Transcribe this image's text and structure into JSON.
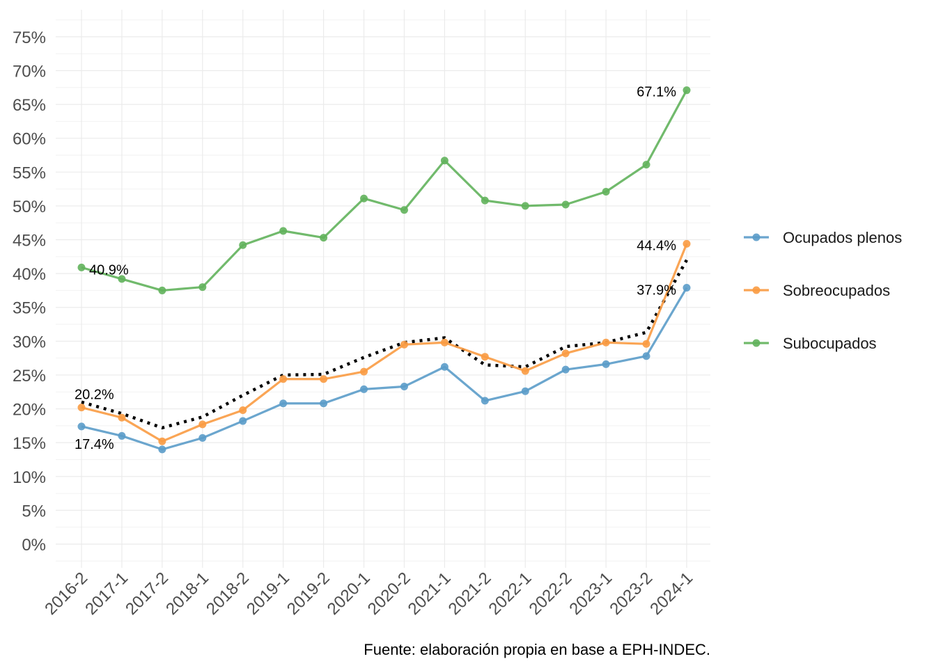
{
  "chart_data": {
    "type": "line",
    "x": [
      "2016-2",
      "2017-1",
      "2017-2",
      "2018-1",
      "2018-2",
      "2019-1",
      "2019-2",
      "2020-1",
      "2020-2",
      "2021-1",
      "2021-2",
      "2022-1",
      "2022-2",
      "2023-1",
      "2023-2",
      "2024-1"
    ],
    "series": [
      {
        "name": "Ocupados plenos",
        "color": "#5b9cc9",
        "values": [
          17.4,
          16.0,
          14.0,
          15.7,
          18.2,
          20.8,
          20.8,
          22.9,
          23.3,
          26.2,
          21.2,
          22.6,
          25.8,
          26.6,
          27.8,
          37.9
        ]
      },
      {
        "name": "Sobreocupados",
        "color": "#f99b42",
        "values": [
          20.2,
          18.7,
          15.2,
          17.7,
          19.8,
          24.4,
          24.4,
          25.5,
          29.5,
          29.8,
          27.7,
          25.6,
          28.2,
          29.8,
          29.6,
          44.4
        ]
      },
      {
        "name": "Subocupados",
        "color": "#62b35c",
        "values": [
          40.9,
          39.2,
          37.5,
          38.0,
          44.2,
          46.3,
          45.3,
          51.1,
          49.4,
          56.7,
          50.8,
          50.0,
          50.2,
          52.1,
          56.1,
          67.1
        ]
      }
    ],
    "trend": {
      "style": "dotted",
      "color": "#000000",
      "values": [
        21.0,
        19.3,
        17.2,
        18.8,
        22.0,
        25.0,
        25.1,
        27.6,
        29.8,
        30.5,
        26.5,
        26.2,
        29.2,
        29.8,
        31.3,
        42.0
      ]
    },
    "labels": [
      {
        "series": 2,
        "index": 0,
        "text": "40.9%"
      },
      {
        "series": 1,
        "index": 0,
        "text": "20.2%"
      },
      {
        "series": 0,
        "index": 0,
        "text": "17.4%"
      },
      {
        "series": 2,
        "index": 15,
        "text": "67.1%"
      },
      {
        "series": 1,
        "index": 15,
        "text": "44.4%"
      },
      {
        "series": 0,
        "index": 15,
        "text": "37.9%"
      }
    ],
    "ylim": [
      -3.5,
      79
    ],
    "yticks": [
      0,
      5,
      10,
      15,
      20,
      25,
      30,
      35,
      40,
      45,
      50,
      55,
      60,
      65,
      70,
      75
    ],
    "ytick_suffix": "%",
    "grid": true,
    "legend": "right",
    "caption": "Fuente: elaboración propia en base a EPH-INDEC."
  }
}
